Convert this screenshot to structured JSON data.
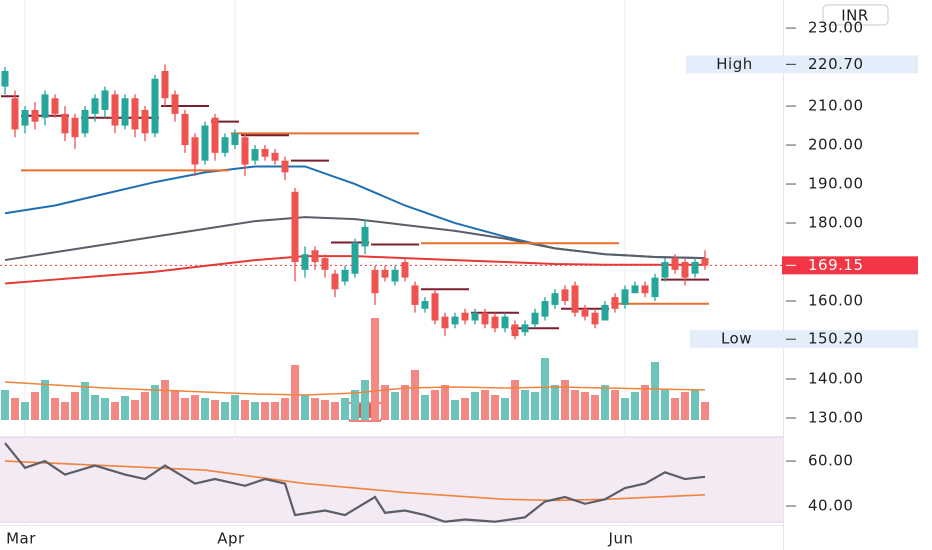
{
  "chart_data": {
    "type": "candlestick",
    "currency": "INR",
    "up_color": "#26a69a",
    "down_color": "#ef5350",
    "up_volume_color": "#6cc4bb",
    "down_volume_color": "#f28985",
    "open": [
      215,
      212,
      205,
      209,
      207,
      212,
      208,
      207,
      203,
      208,
      209,
      213,
      205,
      212,
      209,
      203,
      219,
      213,
      208,
      202,
      196,
      207,
      198,
      200,
      202,
      196,
      199,
      198,
      196,
      188,
      168,
      173,
      171,
      167,
      165,
      167,
      174,
      168,
      168,
      165,
      170,
      164,
      158,
      162,
      156,
      154,
      157,
      155,
      157,
      156,
      153,
      154,
      152,
      154,
      156,
      159,
      163,
      164,
      158,
      157,
      155,
      161,
      159,
      162,
      164,
      161,
      166,
      171,
      170,
      167,
      171
    ],
    "high": [
      220,
      214,
      210,
      211,
      214,
      213,
      210,
      208,
      210,
      213,
      215,
      214,
      213,
      213,
      210,
      218,
      220.7,
      214,
      209,
      203,
      206,
      208,
      203,
      204,
      203,
      200,
      200,
      199,
      197,
      189,
      174,
      174,
      172,
      168,
      169,
      176,
      181,
      169,
      169,
      169,
      171,
      165,
      161,
      163,
      157,
      157,
      158,
      158,
      158,
      157,
      157,
      155,
      155,
      158,
      161,
      163,
      164,
      165,
      159,
      158,
      160,
      162,
      164,
      165,
      165,
      167,
      171,
      172,
      171,
      171,
      173
    ],
    "low": [
      213,
      202,
      203,
      204,
      205,
      207,
      201,
      199,
      202,
      206,
      207,
      203,
      204,
      202,
      201,
      202,
      210,
      206,
      198,
      192,
      195,
      196,
      197,
      199,
      192,
      195,
      196,
      195,
      191,
      165,
      166,
      168,
      166,
      161,
      164,
      166,
      172,
      159,
      165,
      164,
      165,
      157,
      157,
      154,
      151,
      153,
      154,
      154,
      153,
      152,
      152,
      150.2,
      151,
      153,
      155,
      158,
      159,
      156,
      155,
      153,
      155,
      157,
      158,
      162,
      161,
      160,
      165,
      167,
      164,
      166,
      168
    ],
    "close": [
      219,
      204,
      209,
      206,
      213,
      208,
      203,
      202,
      209,
      212,
      214,
      205,
      212,
      204,
      203,
      217,
      212,
      208,
      200,
      195,
      205,
      198,
      202,
      203,
      195,
      199,
      197,
      196,
      193,
      170,
      172,
      170,
      168,
      163,
      168,
      175,
      179,
      162,
      166,
      168,
      166,
      159,
      160,
      155,
      153,
      156,
      155,
      157,
      154,
      153,
      156,
      151,
      154,
      157,
      160,
      162,
      160,
      157,
      156,
      154,
      159,
      158,
      163,
      164,
      162,
      166,
      170,
      168,
      166,
      170,
      169.15
    ],
    "volume": [
      30,
      22,
      18,
      28,
      40,
      22,
      18,
      28,
      38,
      25,
      22,
      18,
      24,
      20,
      28,
      35,
      40,
      30,
      22,
      25,
      22,
      20,
      18,
      25,
      20,
      18,
      18,
      18,
      22,
      55,
      25,
      22,
      20,
      18,
      22,
      30,
      40,
      102,
      35,
      28,
      35,
      50,
      25,
      30,
      35,
      20,
      22,
      28,
      30,
      25,
      22,
      40,
      30,
      28,
      62,
      35,
      40,
      30,
      28,
      25,
      35,
      30,
      22,
      28,
      35,
      58,
      30,
      22,
      28,
      30,
      18
    ],
    "ylim": [
      128.2,
      237.2
    ],
    "yticks": [
      {
        "value": 230,
        "label": "230.00"
      },
      {
        "value": 210,
        "label": "210.00"
      },
      {
        "value": 200,
        "label": "200.00"
      },
      {
        "value": 190,
        "label": "190.00"
      },
      {
        "value": 180,
        "label": "180.00"
      },
      {
        "value": 160,
        "label": "160.00"
      },
      {
        "value": 140,
        "label": "140.00"
      },
      {
        "value": 130,
        "label": "130.00"
      }
    ],
    "high_marker": {
      "label": "High",
      "value": 220.7,
      "value_label": "220.70"
    },
    "low_marker": {
      "label": "Low",
      "value": 150.2,
      "value_label": "150.20"
    },
    "last_marker": {
      "value": 169.15,
      "color": "#f23645"
    },
    "moving_averages": [
      {
        "color": "#1f6fb5",
        "x": [
          0,
          5,
          10,
          15,
          20,
          25,
          30,
          35,
          40,
          45,
          50,
          55,
          60,
          65,
          70
        ],
        "values": [
          182.5,
          184.5,
          187.5,
          190.5,
          193,
          194.5,
          194.5,
          190,
          184.5,
          180,
          176.5,
          173.5,
          172,
          171.3,
          171
        ]
      },
      {
        "color": "#5b5e66",
        "x": [
          0,
          5,
          10,
          15,
          20,
          25,
          30,
          35,
          40,
          45,
          50,
          55,
          60,
          65,
          70
        ],
        "values": [
          170.5,
          172.5,
          174.5,
          176.5,
          178.5,
          180.5,
          181.5,
          181,
          179.5,
          178,
          176,
          173.5,
          172,
          171.3,
          171
        ]
      },
      {
        "color": "#e53935",
        "x": [
          0,
          5,
          10,
          15,
          20,
          25,
          30,
          35,
          40,
          45,
          50,
          55,
          60,
          65,
          70
        ],
        "values": [
          164.5,
          165.5,
          166.5,
          167.5,
          169,
          170.5,
          171.5,
          171.5,
          171,
          170.5,
          170,
          169.5,
          169.3,
          169.3,
          169.3
        ]
      }
    ],
    "volume_ma": {
      "color": "#f0843c",
      "x": [
        0,
        5,
        10,
        15,
        20,
        25,
        30,
        35,
        40,
        45,
        50,
        55,
        60,
        65,
        70
      ],
      "values": [
        38,
        35,
        32,
        30,
        28,
        26,
        25,
        27,
        32,
        33,
        32,
        33,
        32,
        31,
        30
      ]
    },
    "levels": [
      {
        "start": 2,
        "end": 22,
        "value": 193.5,
        "color": "#e8702a"
      },
      {
        "start": 23,
        "end": 41,
        "value": 203,
        "color": "#e8702a"
      },
      {
        "start": 42,
        "end": 61,
        "value": 174.8,
        "color": "#e8702a"
      },
      {
        "start": 61,
        "end": 70,
        "value": 159.3,
        "color": "#e8702a"
      },
      {
        "start": 0,
        "end": 1,
        "value": 212.5,
        "color": "#7b1e2e"
      },
      {
        "start": 2,
        "end": 6,
        "value": 207.5,
        "color": "#7b1e2e"
      },
      {
        "start": 8,
        "end": 15,
        "value": 207,
        "color": "#7b1e2e"
      },
      {
        "start": 16,
        "end": 20,
        "value": 210,
        "color": "#7b1e2e"
      },
      {
        "start": 21,
        "end": 23,
        "value": 206,
        "color": "#7b1e2e"
      },
      {
        "start": 24,
        "end": 28,
        "value": 202.5,
        "color": "#7b1e2e"
      },
      {
        "start": 29,
        "end": 32,
        "value": 196,
        "color": "#7b1e2e"
      },
      {
        "start": 33,
        "end": 36,
        "value": 175,
        "color": "#7b1e2e"
      },
      {
        "start": 37,
        "end": 41,
        "value": 174.5,
        "color": "#7b1e2e"
      },
      {
        "start": 42,
        "end": 46,
        "value": 163,
        "color": "#7b1e2e"
      },
      {
        "start": 47,
        "end": 51,
        "value": 157,
        "color": "#7b1e2e"
      },
      {
        "start": 51,
        "end": 55,
        "value": 153,
        "color": "#7b1e2e"
      },
      {
        "start": 56,
        "end": 60,
        "value": 158,
        "color": "#7b1e2e"
      },
      {
        "start": 66,
        "end": 70,
        "value": 165.5,
        "color": "#7b1e2e"
      }
    ],
    "x_labels": [
      {
        "index": 2,
        "label": "Mar"
      },
      {
        "index": 23,
        "label": "Apr"
      },
      {
        "index": 62,
        "label": "Jun"
      }
    ],
    "rsi": {
      "ylim": [
        32.9,
        70.7
      ],
      "yticks": [
        {
          "value": 60,
          "label": "60.00"
        },
        {
          "value": 40,
          "label": "40.00"
        }
      ],
      "line": {
        "color": "#5b5e66",
        "x": [
          0,
          2,
          4,
          6,
          9,
          12,
          14,
          16,
          19,
          21,
          24,
          26,
          28,
          29,
          32,
          34,
          37,
          38,
          40,
          42,
          44,
          46,
          49,
          52,
          54,
          56,
          58,
          60,
          62,
          64,
          66,
          68,
          70
        ],
        "values": [
          68,
          57,
          60,
          54,
          58,
          54,
          52,
          58,
          50,
          52,
          49,
          52,
          50,
          36,
          38,
          36,
          44,
          37,
          38,
          36,
          33,
          34,
          33,
          35,
          42,
          44,
          41,
          43,
          48,
          50,
          55,
          52,
          53
        ]
      },
      "ma": {
        "color": "#f0843c",
        "x": [
          0,
          10,
          20,
          30,
          40,
          50,
          55,
          60,
          70
        ],
        "values": [
          60,
          58,
          56,
          50,
          46,
          43,
          42.5,
          43,
          45
        ]
      }
    }
  }
}
